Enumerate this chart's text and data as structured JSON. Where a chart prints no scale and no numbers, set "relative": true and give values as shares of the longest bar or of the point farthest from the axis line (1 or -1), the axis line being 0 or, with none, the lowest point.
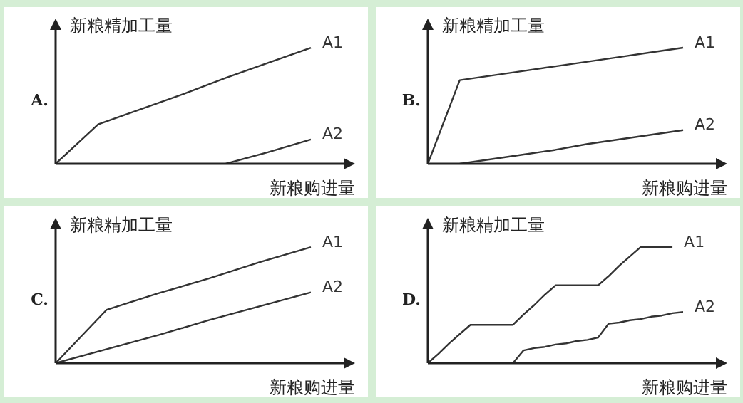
{
  "chart_data": [
    {
      "type": "line",
      "title": "A.",
      "xlabel": "新粮购进量",
      "ylabel": "新粮精加工量",
      "relative": true,
      "legend": false,
      "marker": "none",
      "categories": [
        null,
        null,
        null,
        null,
        null,
        null,
        null
      ],
      "series": [
        {
          "name": "A1",
          "color": "#333333",
          "values": [
            0,
            0.34,
            0.47,
            0.6,
            0.74,
            0.87,
            1
          ]
        },
        {
          "name": "A2",
          "color": "#333333",
          "values": [
            null,
            null,
            null,
            null,
            0,
            0.1,
            0.21
          ]
        }
      ]
    },
    {
      "type": "line",
      "title": "B.",
      "xlabel": "新粮购进量",
      "ylabel": "新粮精加工量",
      "relative": true,
      "legend": false,
      "marker": "none",
      "categories": [
        null,
        null,
        null,
        null,
        null,
        null,
        null,
        null,
        null
      ],
      "series": [
        {
          "name": "A1",
          "color": "#333333",
          "values": [
            0,
            0.72,
            0.76,
            0.8,
            0.84,
            0.88,
            0.92,
            0.96,
            1
          ]
        },
        {
          "name": "A2",
          "color": "#333333",
          "values": [
            null,
            0,
            0.04,
            0.08,
            0.12,
            0.17,
            0.21,
            0.25,
            0.29
          ]
        }
      ]
    },
    {
      "type": "line",
      "title": "C.",
      "xlabel": "新粮购进量",
      "ylabel": "新粮精加工量",
      "relative": true,
      "legend": false,
      "marker": "none",
      "categories": [
        null,
        null,
        null,
        null,
        null,
        null
      ],
      "series": [
        {
          "name": "A1",
          "color": "#333333",
          "values": [
            0,
            0.46,
            0.6,
            0.73,
            0.87,
            1
          ]
        },
        {
          "name": "A2",
          "color": "#333333",
          "values": [
            0,
            0.12,
            0.24,
            0.37,
            0.49,
            0.61
          ]
        }
      ]
    },
    {
      "type": "line",
      "title": "D.",
      "xlabel": "新粮购进量",
      "ylabel": "新粮精加工量",
      "relative": true,
      "legend": false,
      "marker": "none",
      "categories": [
        null,
        null,
        null,
        null,
        null,
        null,
        null,
        null,
        null,
        null,
        null,
        null,
        null,
        null,
        null,
        null,
        null,
        null,
        null,
        null,
        null,
        null,
        null,
        null,
        null
      ],
      "series": [
        {
          "name": "A1",
          "color": "#333333",
          "values": [
            0,
            0.08,
            0.17,
            0.25,
            0.33,
            0.33,
            0.33,
            0.33,
            0.33,
            0.42,
            0.5,
            0.59,
            0.67,
            0.67,
            0.67,
            0.67,
            0.67,
            0.75,
            0.84,
            0.92,
            1,
            1,
            1,
            1,
            null
          ]
        },
        {
          "name": "A2",
          "color": "#333333",
          "values": [
            null,
            null,
            null,
            null,
            null,
            null,
            null,
            null,
            0,
            0.11,
            0.13,
            0.14,
            0.16,
            0.17,
            0.19,
            0.2,
            0.22,
            0.34,
            0.35,
            0.37,
            0.38,
            0.4,
            0.41,
            0.43,
            0.44
          ]
        }
      ]
    }
  ]
}
